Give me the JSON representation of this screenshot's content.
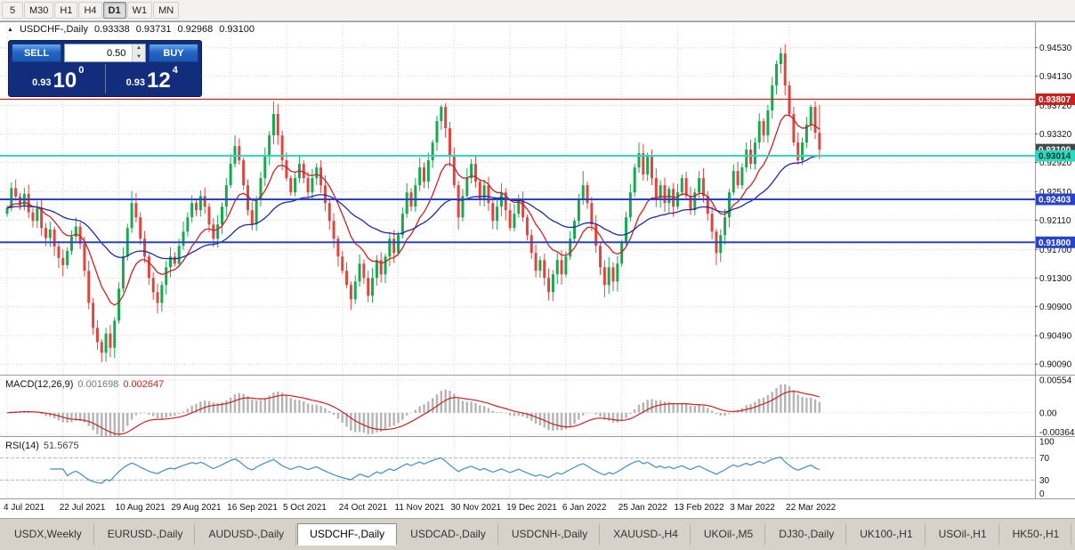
{
  "toolbar": {
    "timeframes": [
      {
        "label": "5",
        "active": false
      },
      {
        "label": "M30",
        "active": false
      },
      {
        "label": "H1",
        "active": false
      },
      {
        "label": "H4",
        "active": false
      },
      {
        "label": "D1",
        "active": true
      },
      {
        "label": "W1",
        "active": false
      },
      {
        "label": "MN",
        "active": false
      }
    ]
  },
  "chart_header": {
    "icon": "▲",
    "title": "USDCHF-,Daily",
    "open": "0.93338",
    "high": "0.93731",
    "low": "0.92968",
    "close": "0.93100"
  },
  "trade_panel": {
    "sell_label": "SELL",
    "buy_label": "BUY",
    "lot_value": "0.50",
    "sell_big": "0.93",
    "sell_mid": "10",
    "sell_sup": "0",
    "buy_big": "0.93",
    "buy_mid": "12",
    "buy_sup": "4"
  },
  "price_axis": {
    "min": 0.8998,
    "max": 0.9485,
    "ticks": [
      {
        "p": 0.9453,
        "label": "0.94530"
      },
      {
        "p": 0.9413,
        "label": "0.94130"
      },
      {
        "p": 0.9372,
        "label": "0.93720"
      },
      {
        "p": 0.9332,
        "label": "0.93320"
      },
      {
        "p": 0.9292,
        "label": "0.92920"
      },
      {
        "p": 0.9251,
        "label": "0.92510"
      },
      {
        "p": 0.9211,
        "label": "0.92110"
      },
      {
        "p": 0.917,
        "label": "0.91700"
      },
      {
        "p": 0.913,
        "label": "0.91300"
      },
      {
        "p": 0.909,
        "label": "0.90900"
      },
      {
        "p": 0.9049,
        "label": "0.90490"
      },
      {
        "p": 0.9009,
        "label": "0.90090"
      }
    ]
  },
  "hlines": [
    {
      "p": 0.93807,
      "label": "0.93807",
      "color": "#c52222",
      "width": 1.3,
      "badge_fg": "#ffffff"
    },
    {
      "p": 0.93014,
      "label": "0.93014",
      "color": "#2dd8c0",
      "width": 2,
      "badge_fg": "#00362d"
    },
    {
      "p": 0.92403,
      "label": "0.92403",
      "color": "#2843c8",
      "width": 2,
      "badge_fg": "#ffffff"
    },
    {
      "p": 0.918,
      "label": "0.91800",
      "color": "#2843c8",
      "width": 2,
      "badge_fg": "#ffffff"
    }
  ],
  "current_badge": {
    "p": 0.931,
    "label": "0.93100",
    "bg": "#43484d",
    "fg": "#ffffff"
  },
  "macd": {
    "title": "MACD(12,26,9)",
    "main_value": "0.001698",
    "signal_value": "0.002647",
    "axis_max": 0.00554,
    "axis_min": -0.00364,
    "tick_labels": [
      {
        "v": 0.00554,
        "label": "0.00554"
      },
      {
        "v": 0,
        "label": "0.00"
      },
      {
        "v": -0.00364,
        "label": "-0.00364"
      }
    ]
  },
  "rsi": {
    "title": "RSI(14)",
    "value": "51.5675",
    "levels": [
      70,
      30
    ],
    "tick_labels": [
      {
        "v": 100,
        "label": "100"
      },
      {
        "v": 70,
        "label": "70"
      },
      {
        "v": 30,
        "label": "30"
      },
      {
        "v": 0,
        "label": "0"
      }
    ]
  },
  "date_axis": {
    "labels": [
      {
        "i": 0,
        "text": "4 Jul 2021"
      },
      {
        "i": 13,
        "text": "22 Jul 2021"
      },
      {
        "i": 26,
        "text": "10 Aug 2021"
      },
      {
        "i": 39,
        "text": "29 Aug 2021"
      },
      {
        "i": 52,
        "text": "16 Sep 2021"
      },
      {
        "i": 65,
        "text": "5 Oct 2021"
      },
      {
        "i": 78,
        "text": "24 Oct 2021"
      },
      {
        "i": 91,
        "text": "11 Nov 2021"
      },
      {
        "i": 104,
        "text": "30 Nov 2021"
      },
      {
        "i": 117,
        "text": "19 Dec 2021"
      },
      {
        "i": 130,
        "text": "6 Jan 2022"
      },
      {
        "i": 143,
        "text": "25 Jan 2022"
      },
      {
        "i": 156,
        "text": "13 Feb 2022"
      },
      {
        "i": 169,
        "text": "3 Mar 2022"
      },
      {
        "i": 182,
        "text": "22 Mar 2022"
      }
    ]
  },
  "tabs": [
    {
      "label": "USDX,Weekly",
      "active": false
    },
    {
      "label": "EURUSD-,Daily",
      "active": false
    },
    {
      "label": "AUDUSD-,Daily",
      "active": false
    },
    {
      "label": "USDCHF-,Daily",
      "active": true
    },
    {
      "label": "USDCAD-,Daily",
      "active": false
    },
    {
      "label": "USDCNH-,Daily",
      "active": false
    },
    {
      "label": "XAUUSD-,H4",
      "active": false
    },
    {
      "label": "UKOil-,M5",
      "active": false
    },
    {
      "label": "DJ30-,Daily",
      "active": false
    },
    {
      "label": "UK100-,H1",
      "active": false
    },
    {
      "label": "USOil-,H1",
      "active": false
    },
    {
      "label": "HK50-,H1",
      "active": false
    }
  ],
  "colors": {
    "up": "#18a850",
    "down": "#e0453f",
    "ma_fast": "#cc2222",
    "ma_slow": "#1f2aa0",
    "macd_hist": "#b4b4b4",
    "macd_signal": "#cc2222",
    "rsi_line": "#3f8ec7",
    "grid": "#d4d4d4",
    "panel_border": "#9c9c9c"
  },
  "chart_data": {
    "type": "candlestick",
    "symbol": "USDCHF-",
    "timeframe": "Daily",
    "ohlc_current": {
      "open": 0.93338,
      "high": 0.93731,
      "low": 0.92968,
      "close": 0.931
    },
    "closes": [
      0.9228,
      0.9256,
      0.9244,
      0.9232,
      0.9248,
      0.9222,
      0.921,
      0.9228,
      0.92,
      0.9186,
      0.9198,
      0.9174,
      0.9158,
      0.9148,
      0.9168,
      0.9188,
      0.9202,
      0.9178,
      0.914,
      0.9095,
      0.906,
      0.904,
      0.9025,
      0.9052,
      0.9032,
      0.907,
      0.9115,
      0.916,
      0.92,
      0.9235,
      0.9215,
      0.9185,
      0.916,
      0.913,
      0.911,
      0.9095,
      0.912,
      0.9145,
      0.916,
      0.915,
      0.9175,
      0.9195,
      0.9215,
      0.9235,
      0.9225,
      0.9245,
      0.923,
      0.9205,
      0.9185,
      0.9205,
      0.923,
      0.926,
      0.929,
      0.9315,
      0.9295,
      0.926,
      0.9225,
      0.9205,
      0.924,
      0.927,
      0.93,
      0.933,
      0.936,
      0.933,
      0.9295,
      0.927,
      0.925,
      0.927,
      0.929,
      0.927,
      0.925,
      0.927,
      0.9285,
      0.926,
      0.9235,
      0.921,
      0.9185,
      0.916,
      0.914,
      0.912,
      0.91,
      0.9125,
      0.915,
      0.913,
      0.9105,
      0.913,
      0.9155,
      0.9135,
      0.916,
      0.9185,
      0.9165,
      0.919,
      0.922,
      0.925,
      0.923,
      0.926,
      0.9285,
      0.9265,
      0.9295,
      0.932,
      0.935,
      0.937,
      0.934,
      0.93,
      0.926,
      0.9215,
      0.9245,
      0.927,
      0.929,
      0.9265,
      0.924,
      0.926,
      0.9235,
      0.921,
      0.923,
      0.925,
      0.9225,
      0.92,
      0.922,
      0.924,
      0.9215,
      0.919,
      0.9165,
      0.914,
      0.9155,
      0.913,
      0.911,
      0.9135,
      0.9155,
      0.9135,
      0.916,
      0.9185,
      0.921,
      0.924,
      0.926,
      0.9235,
      0.9205,
      0.9175,
      0.9145,
      0.912,
      0.9145,
      0.9125,
      0.915,
      0.918,
      0.9215,
      0.925,
      0.9285,
      0.9305,
      0.9275,
      0.93,
      0.927,
      0.924,
      0.926,
      0.9235,
      0.9255,
      0.923,
      0.925,
      0.927,
      0.9245,
      0.9225,
      0.925,
      0.927,
      0.9245,
      0.922,
      0.9195,
      0.9165,
      0.919,
      0.9215,
      0.925,
      0.928,
      0.926,
      0.9285,
      0.931,
      0.929,
      0.932,
      0.935,
      0.933,
      0.9365,
      0.94,
      0.943,
      0.9445,
      0.94,
      0.936,
      0.932,
      0.9295,
      0.932,
      0.9345,
      0.937,
      0.93338,
      0.931
    ],
    "wick_overrides": {
      "13": [
        null,
        0.9132
      ],
      "22": [
        null,
        0.9012
      ],
      "29": [
        0.9252,
        null
      ],
      "35": [
        null,
        0.908
      ],
      "53": [
        0.933,
        null
      ],
      "62": [
        0.9378,
        null
      ],
      "80": [
        null,
        0.9085
      ],
      "101": [
        0.9373,
        null
      ],
      "105": [
        null,
        0.9198
      ],
      "134": [
        0.928,
        null
      ],
      "139": [
        null,
        0.9103
      ],
      "147": [
        0.932,
        null
      ],
      "165": [
        null,
        0.9148
      ],
      "180": [
        0.9453,
        null
      ],
      "187": [
        0.9373,
        null
      ]
    }
  }
}
